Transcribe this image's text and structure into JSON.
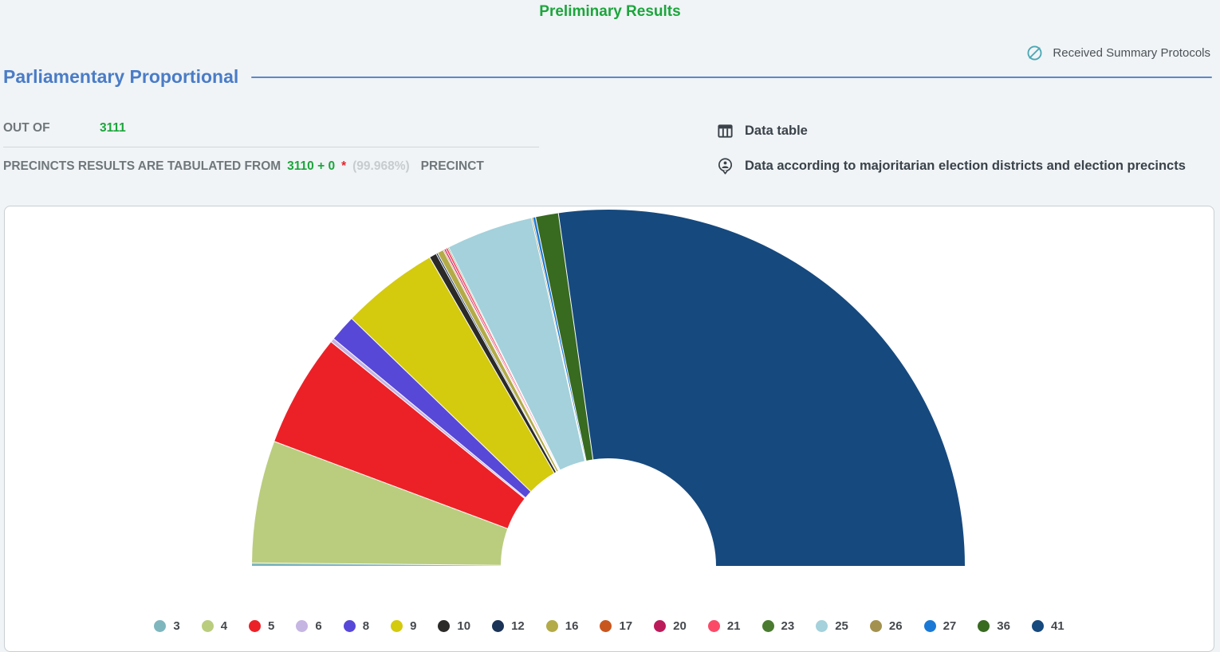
{
  "page": {
    "title": "Preliminary Results",
    "title_color": "#1ca53c",
    "background": "#f0f4f6"
  },
  "header": {
    "received_label": "Received Summary Protocols",
    "link_icon_color": "#4ba7b4"
  },
  "section": {
    "heading": "Parliamentary Proportional",
    "heading_color": "#4a7cc7",
    "rule_color": "#5d88c9"
  },
  "stats": {
    "out_of_label": "OUT OF",
    "out_of_value": "3111",
    "tabulated_prefix": "PRECINCTS RESULTS ARE TABULATED FROM",
    "tabulated_value": "3110 + 0",
    "asterisk": "*",
    "percent": "(99.968%)",
    "tabulated_suffix": "PRECINCT"
  },
  "links": {
    "data_table": "Data table",
    "majoritarian": "Data according to majoritarian election districts and election precincts",
    "icon_color": "#3a424a"
  },
  "chart_data": {
    "type": "pie",
    "variant": "half-donut",
    "title": "Parliamentary Proportional preliminary results by party ballot number",
    "legend_position": "bottom",
    "gap_color": "#ffffff",
    "inner_radius_ratio": 0.3,
    "note": "values are percent shares estimated from arc angles; no numeric labels shown on chart",
    "series": [
      {
        "label": "3",
        "color": "#7fb6be",
        "value": 0.3
      },
      {
        "label": "4",
        "color": "#bacd7f",
        "value": 11.0
      },
      {
        "label": "5",
        "color": "#ec2127",
        "value": 10.2
      },
      {
        "label": "6",
        "color": "#c5b5e3",
        "value": 0.35
      },
      {
        "label": "8",
        "color": "#5848d8",
        "value": 2.4
      },
      {
        "label": "9",
        "color": "#d4ca0e",
        "value": 8.8
      },
      {
        "label": "10",
        "color": "#2b2a28",
        "value": 0.65
      },
      {
        "label": "12",
        "color": "#1b3356",
        "value": 0.15
      },
      {
        "label": "16",
        "color": "#b3ab47",
        "value": 0.55
      },
      {
        "label": "17",
        "color": "#c8571f",
        "value": 0.1
      },
      {
        "label": "20",
        "color": "#bc1b59",
        "value": 0.15
      },
      {
        "label": "21",
        "color": "#fb4a68",
        "value": 0.2
      },
      {
        "label": "23",
        "color": "#4b7b31",
        "value": 0.1
      },
      {
        "label": "25",
        "color": "#a4d1db",
        "value": 7.8
      },
      {
        "label": "26",
        "color": "#a3924f",
        "value": 0.12
      },
      {
        "label": "27",
        "color": "#1b79d6",
        "value": 0.25
      },
      {
        "label": "36",
        "color": "#386a20",
        "value": 2.05
      },
      {
        "label": "41",
        "color": "#16497e",
        "value": 54.0
      }
    ]
  }
}
